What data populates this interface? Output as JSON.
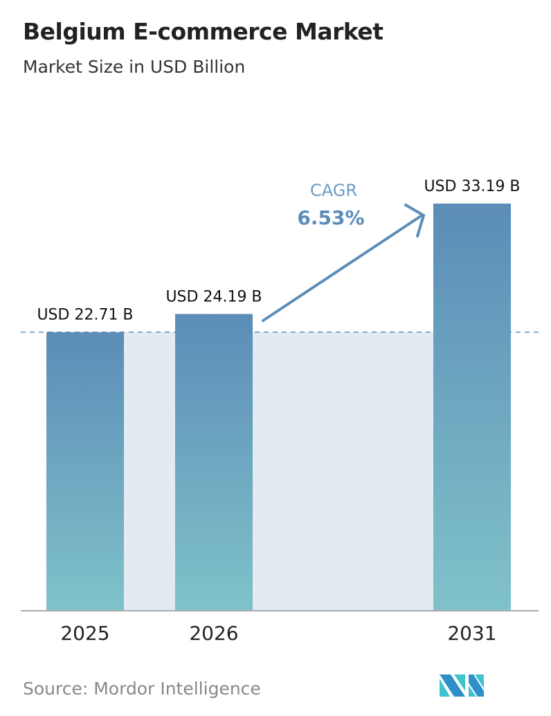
{
  "title": "Belgium E-commerce Market",
  "subtitle": "Market Size in USD Billion",
  "source": "Source:  Mordor Intelligence",
  "logo": "Mordor Intelligence logo",
  "colors": {
    "bar_top": "#5b8db8",
    "bar_bottom": "#80c2c9",
    "shade": "#e3ebf2",
    "accent": "#5b8db8"
  },
  "chart_data": {
    "type": "bar",
    "categories": [
      "2025",
      "2026",
      "2031"
    ],
    "values": [
      22.71,
      24.19,
      33.19
    ],
    "data_labels": [
      "USD 22.71 B",
      "USD 24.19 B",
      "USD 33.19 B"
    ],
    "ylim": [
      0,
      33.19
    ],
    "grid": false,
    "annotation": {
      "label": "CAGR",
      "value": "6.53%"
    },
    "reference_line": 22.71
  }
}
